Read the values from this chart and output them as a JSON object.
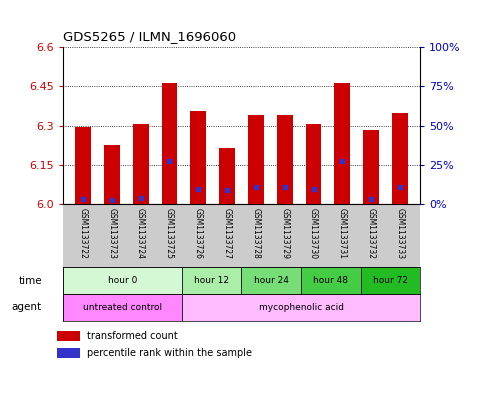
{
  "title": "GDS5265 / ILMN_1696060",
  "samples": [
    "GSM1133722",
    "GSM1133723",
    "GSM1133724",
    "GSM1133725",
    "GSM1133726",
    "GSM1133727",
    "GSM1133728",
    "GSM1133729",
    "GSM1133730",
    "GSM1133731",
    "GSM1133732",
    "GSM1133733"
  ],
  "bar_values": [
    6.295,
    6.225,
    6.305,
    6.465,
    6.355,
    6.215,
    6.34,
    6.34,
    6.305,
    6.465,
    6.285,
    6.35
  ],
  "blue_values": [
    6.02,
    6.015,
    6.025,
    6.165,
    6.06,
    6.055,
    6.065,
    6.065,
    6.06,
    6.165,
    6.02,
    6.065
  ],
  "bar_bottom": 6.0,
  "ylim": [
    6.0,
    6.6
  ],
  "yticks": [
    6.0,
    6.15,
    6.3,
    6.45,
    6.6
  ],
  "right_yticks": [
    0,
    25,
    50,
    75,
    100
  ],
  "bar_color": "#cc0000",
  "blue_color": "#3333cc",
  "time_groups": [
    {
      "label": "hour 0",
      "start": 0,
      "end": 4,
      "color": "#d4f7d4"
    },
    {
      "label": "hour 12",
      "start": 4,
      "end": 6,
      "color": "#aaeeaa"
    },
    {
      "label": "hour 24",
      "start": 6,
      "end": 8,
      "color": "#77dd77"
    },
    {
      "label": "hour 48",
      "start": 8,
      "end": 10,
      "color": "#44cc44"
    },
    {
      "label": "hour 72",
      "start": 10,
      "end": 12,
      "color": "#22bb22"
    }
  ],
  "agent_groups": [
    {
      "label": "untreated control",
      "start": 0,
      "end": 4,
      "color": "#ff88ff"
    },
    {
      "label": "mycophenolic acid",
      "start": 4,
      "end": 12,
      "color": "#ffbbff"
    }
  ],
  "bar_width": 0.55,
  "ylabel_color": "#cc0000",
  "right_ylabel_color": "#0000cc",
  "background_color": "#ffffff",
  "legend_red_label": "transformed count",
  "legend_blue_label": "percentile rank within the sample",
  "sample_bg_color": "#cccccc"
}
